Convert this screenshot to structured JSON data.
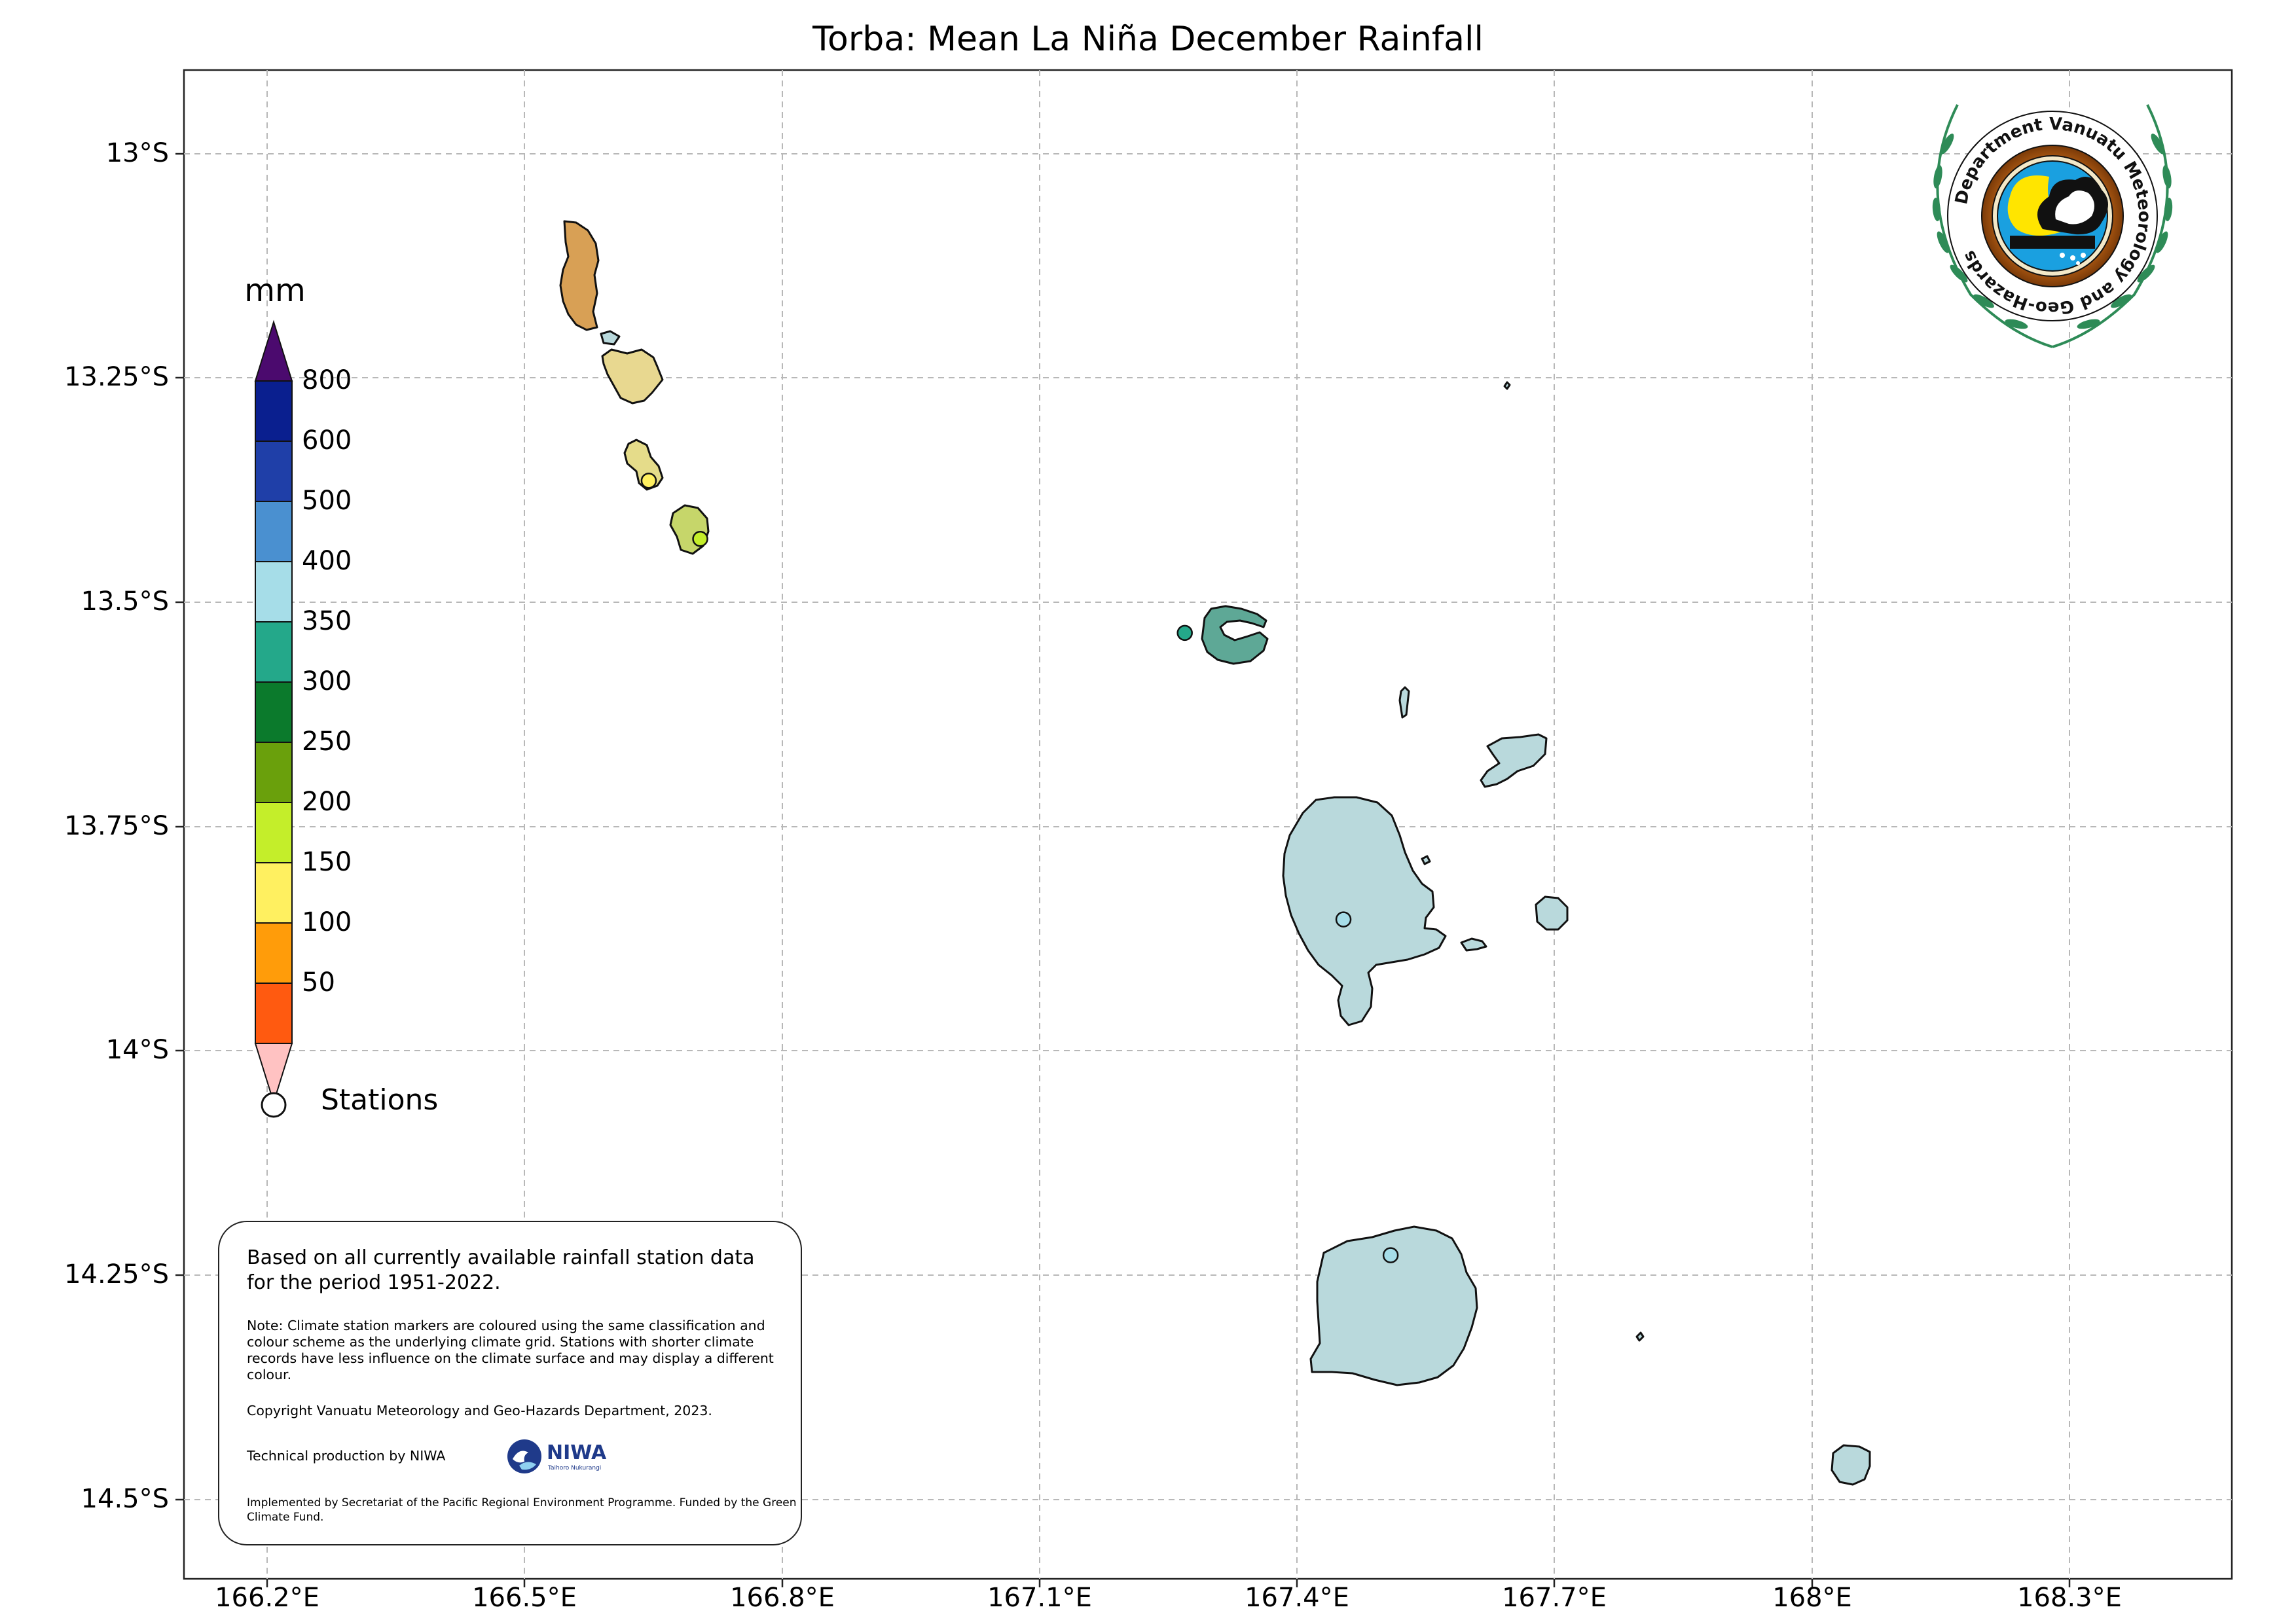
{
  "map": {
    "title": "Torba: Mean La Niña December Rainfall",
    "lat_ticks": [
      "13°S",
      "13.25°S",
      "13.5°S",
      "13.75°S",
      "14°S",
      "14.25°S",
      "14.5°S"
    ],
    "lon_ticks": [
      "166.2°E",
      "166.5°E",
      "166.8°E",
      "167.1°E",
      "167.4°E",
      "167.7°E",
      "168°E",
      "168.3°E"
    ],
    "gridlines": true
  },
  "colorbar": {
    "unit": "mm",
    "labels": [
      "800",
      "600",
      "500",
      "400",
      "350",
      "300",
      "250",
      "200",
      "150",
      "100",
      "50"
    ],
    "colors": [
      "#4b0a6e",
      "#0a1f8f",
      "#1f3fa8",
      "#4a90d0",
      "#a6dde8",
      "#24a88a",
      "#0b7a2c",
      "#6aa00c",
      "#c4ee2a",
      "#fff060",
      "#ff9c0a",
      "#ff5a10",
      "#ffc2c2"
    ]
  },
  "legend": {
    "stations_label": "Stations"
  },
  "info": {
    "main": "Based on all currently available rainfall station data for the period 1951-2022.",
    "note": "Note: Climate station markers are coloured using the same classification and colour scheme as the underlying climate grid. Stations with shorter climate records have less influence on the climate surface and may display a different colour.",
    "copyright": "Copyright Vanuatu Meteorology and Geo-Hazards Department, 2023.",
    "technical": "Technical production by NIWA",
    "implemented": "Implemented by Secretariat of the Pacific Regional Environment Programme. Funded by the Green Climate Fund."
  },
  "niwa_logo": {
    "text": "NIWA",
    "subtext": "Taihoro Nukurangi"
  },
  "department_logo": {
    "text": "Department Vanuatu Meteorology and Geo-Hazards"
  },
  "islands": [
    {
      "name": "torres-north",
      "color": "#d8a055"
    },
    {
      "name": "torres-mid",
      "color": "#e8d890"
    },
    {
      "name": "torres-south",
      "color": "#e5dc8a"
    },
    {
      "name": "torres-far-south",
      "color": "#c6d66a"
    },
    {
      "name": "ureparapara",
      "color": "#5ea896"
    },
    {
      "name": "vanua-lava",
      "color": "#b9d9dc"
    },
    {
      "name": "mota-lava",
      "color": "#b9d9dc"
    },
    {
      "name": "mota",
      "color": "#b9d9dc"
    },
    {
      "name": "gaua",
      "color": "#b9d9dc"
    },
    {
      "name": "merelava",
      "color": "#b9d9dc"
    }
  ],
  "stations": [
    {
      "lon": 166.645,
      "lat": -13.365,
      "color": "#fff060"
    },
    {
      "lon": 166.705,
      "lat": -13.43,
      "color": "#c4ee2a"
    },
    {
      "lon": 167.27,
      "lat": -13.535,
      "color": "#24a88a"
    },
    {
      "lon": 167.455,
      "lat": -13.855,
      "color": "#a6dde8"
    },
    {
      "lon": 167.51,
      "lat": -14.23,
      "color": "#a6dde8"
    }
  ]
}
